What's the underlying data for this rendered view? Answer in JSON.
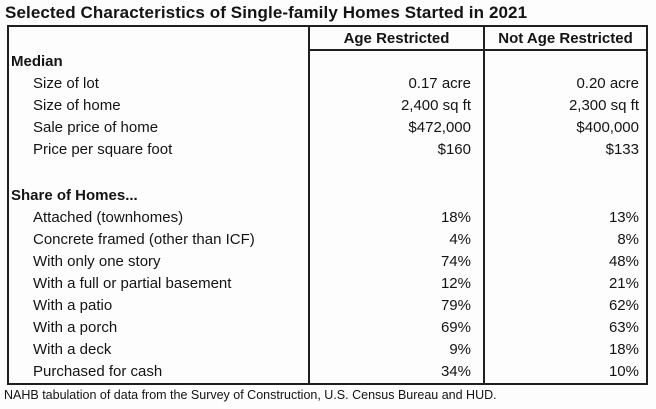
{
  "title": "Selected Characteristics of Single-family Homes Started in 2021",
  "footnote": "NAHB tabulation of data from the Survey of Construction, U.S. Census Bureau and HUD.",
  "chart_data": {
    "type": "table",
    "title": "Selected Characteristics of Single-family Homes Started in 2021",
    "columns": [
      "Age Restricted",
      "Not Age Restricted"
    ],
    "sections": [
      {
        "header": "Median",
        "rows": [
          {
            "label": "Size of lot",
            "age_restricted": "0.17 acre",
            "not_age_restricted": "0.20 acre"
          },
          {
            "label": "Size of home",
            "age_restricted": "2,400 sq ft",
            "not_age_restricted": "2,300 sq ft"
          },
          {
            "label": "Sale price of home",
            "age_restricted": "$472,000",
            "not_age_restricted": "$400,000"
          },
          {
            "label": "Price per square foot",
            "age_restricted": "$160",
            "not_age_restricted": "$133"
          }
        ]
      },
      {
        "header": "Share of Homes...",
        "rows": [
          {
            "label": "Attached (townhomes)",
            "age_restricted": "18%",
            "not_age_restricted": "13%"
          },
          {
            "label": "Concrete framed (other than ICF)",
            "age_restricted": "4%",
            "not_age_restricted": "8%"
          },
          {
            "label": "With only one story",
            "age_restricted": "74%",
            "not_age_restricted": "48%"
          },
          {
            "label": "With a full or partial basement",
            "age_restricted": "12%",
            "not_age_restricted": "21%"
          },
          {
            "label": "With a patio",
            "age_restricted": "79%",
            "not_age_restricted": "62%"
          },
          {
            "label": "With a porch",
            "age_restricted": "69%",
            "not_age_restricted": "63%"
          },
          {
            "label": "With a deck",
            "age_restricted": "9%",
            "not_age_restricted": "18%"
          },
          {
            "label": "Purchased for cash",
            "age_restricted": "34%",
            "not_age_restricted": "10%"
          }
        ]
      }
    ],
    "footnote": "NAHB tabulation of data from the Survey of Construction, U.S. Census Bureau and HUD."
  }
}
